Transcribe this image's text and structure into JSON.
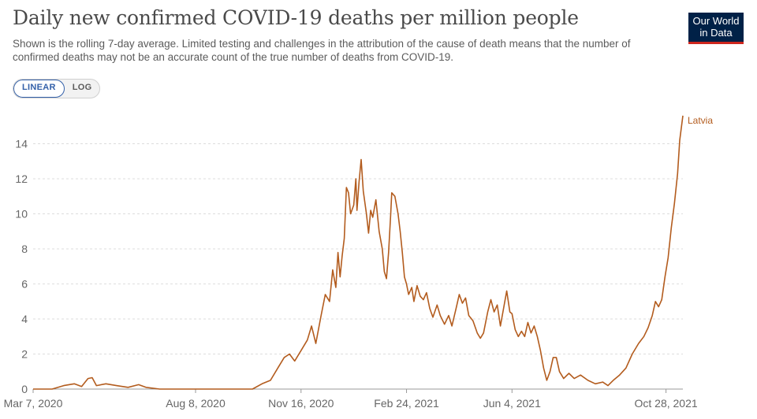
{
  "title": "Daily new confirmed COVID-19 deaths per million people",
  "subtitle": "Shown is the rolling 7-day average. Limited testing and challenges in the attribution of the cause of death means that the number of confirmed deaths may not be an accurate count of the true number of deaths from COVID-19.",
  "logo": {
    "line1": "Our World",
    "line2": "in Data",
    "bg": "#002147",
    "accent": "#ce261e"
  },
  "controls": {
    "linear_label": "LINEAR",
    "log_label": "LOG",
    "selected": "linear"
  },
  "chart_data": {
    "type": "line",
    "title": "Daily new confirmed COVID-19 deaths per million people",
    "xlabel": "",
    "ylabel": "",
    "ylim": [
      0,
      16
    ],
    "yticks": [
      0,
      2,
      4,
      6,
      8,
      10,
      12,
      14
    ],
    "xlim": [
      "2020-03-07",
      "2021-11-13"
    ],
    "xticks": [
      {
        "date": "2020-03-07",
        "label": "Mar 7, 2020"
      },
      {
        "date": "2020-08-08",
        "label": "Aug 8, 2020"
      },
      {
        "date": "2020-11-16",
        "label": "Nov 16, 2020"
      },
      {
        "date": "2021-02-24",
        "label": "Feb 24, 2021"
      },
      {
        "date": "2021-06-04",
        "label": "Jun 4, 2021"
      },
      {
        "date": "2021-10-28",
        "label": "Oct 28, 2021"
      }
    ],
    "grid": true,
    "series": [
      {
        "name": "Latvia",
        "color": "#b35c1e",
        "points": [
          [
            "2020-03-07",
            0
          ],
          [
            "2020-03-25",
            0
          ],
          [
            "2020-04-05",
            0.2
          ],
          [
            "2020-04-15",
            0.3
          ],
          [
            "2020-04-22",
            0.15
          ],
          [
            "2020-04-28",
            0.6
          ],
          [
            "2020-05-02",
            0.65
          ],
          [
            "2020-05-06",
            0.2
          ],
          [
            "2020-05-15",
            0.3
          ],
          [
            "2020-05-25",
            0.2
          ],
          [
            "2020-06-05",
            0.1
          ],
          [
            "2020-06-15",
            0.25
          ],
          [
            "2020-06-22",
            0.1
          ],
          [
            "2020-07-05",
            0
          ],
          [
            "2020-08-08",
            0
          ],
          [
            "2020-09-10",
            0
          ],
          [
            "2020-10-01",
            0
          ],
          [
            "2020-10-10",
            0.3
          ],
          [
            "2020-10-18",
            0.5
          ],
          [
            "2020-10-25",
            1.2
          ],
          [
            "2020-10-31",
            1.8
          ],
          [
            "2020-11-05",
            2.0
          ],
          [
            "2020-11-10",
            1.6
          ],
          [
            "2020-11-16",
            2.2
          ],
          [
            "2020-11-22",
            2.8
          ],
          [
            "2020-11-26",
            3.6
          ],
          [
            "2020-11-30",
            2.6
          ],
          [
            "2020-12-05",
            4.2
          ],
          [
            "2020-12-09",
            5.4
          ],
          [
            "2020-12-13",
            5.0
          ],
          [
            "2020-12-16",
            6.8
          ],
          [
            "2020-12-19",
            5.8
          ],
          [
            "2020-12-21",
            7.8
          ],
          [
            "2020-12-23",
            6.4
          ],
          [
            "2020-12-25",
            7.6
          ],
          [
            "2020-12-27",
            8.6
          ],
          [
            "2020-12-29",
            11.5
          ],
          [
            "2020-12-31",
            11.2
          ],
          [
            "2021-01-02",
            10.0
          ],
          [
            "2021-01-05",
            10.5
          ],
          [
            "2021-01-07",
            12.0
          ],
          [
            "2021-01-08",
            10.2
          ],
          [
            "2021-01-10",
            11.8
          ],
          [
            "2021-01-12",
            13.1
          ],
          [
            "2021-01-14",
            11.3
          ],
          [
            "2021-01-17",
            10.0
          ],
          [
            "2021-01-19",
            8.9
          ],
          [
            "2021-01-21",
            10.2
          ],
          [
            "2021-01-23",
            9.8
          ],
          [
            "2021-01-26",
            10.8
          ],
          [
            "2021-01-29",
            9.0
          ],
          [
            "2021-02-01",
            8.0
          ],
          [
            "2021-02-03",
            6.7
          ],
          [
            "2021-02-05",
            6.3
          ],
          [
            "2021-02-07",
            7.8
          ],
          [
            "2021-02-09",
            10.0
          ],
          [
            "2021-02-10",
            11.2
          ],
          [
            "2021-02-13",
            11.0
          ],
          [
            "2021-02-16",
            10.0
          ],
          [
            "2021-02-18",
            9.0
          ],
          [
            "2021-02-20",
            7.8
          ],
          [
            "2021-02-22",
            6.4
          ],
          [
            "2021-02-24",
            6.0
          ],
          [
            "2021-02-26",
            5.4
          ],
          [
            "2021-03-01",
            5.8
          ],
          [
            "2021-03-03",
            5.0
          ],
          [
            "2021-03-06",
            5.9
          ],
          [
            "2021-03-09",
            5.3
          ],
          [
            "2021-03-12",
            5.1
          ],
          [
            "2021-03-15",
            5.5
          ],
          [
            "2021-03-18",
            4.6
          ],
          [
            "2021-03-21",
            4.1
          ],
          [
            "2021-03-25",
            4.8
          ],
          [
            "2021-03-28",
            4.2
          ],
          [
            "2021-04-01",
            3.7
          ],
          [
            "2021-04-05",
            4.2
          ],
          [
            "2021-04-08",
            3.6
          ],
          [
            "2021-04-12",
            4.6
          ],
          [
            "2021-04-15",
            5.4
          ],
          [
            "2021-04-18",
            4.9
          ],
          [
            "2021-04-21",
            5.2
          ],
          [
            "2021-04-24",
            4.2
          ],
          [
            "2021-04-28",
            3.9
          ],
          [
            "2021-05-02",
            3.2
          ],
          [
            "2021-05-05",
            2.9
          ],
          [
            "2021-05-08",
            3.2
          ],
          [
            "2021-05-12",
            4.4
          ],
          [
            "2021-05-15",
            5.1
          ],
          [
            "2021-05-18",
            4.4
          ],
          [
            "2021-05-21",
            4.8
          ],
          [
            "2021-05-24",
            3.6
          ],
          [
            "2021-05-27",
            4.6
          ],
          [
            "2021-05-30",
            5.6
          ],
          [
            "2021-06-02",
            4.4
          ],
          [
            "2021-06-04",
            4.3
          ],
          [
            "2021-06-07",
            3.4
          ],
          [
            "2021-06-10",
            3.0
          ],
          [
            "2021-06-13",
            3.3
          ],
          [
            "2021-06-16",
            3.0
          ],
          [
            "2021-06-19",
            3.8
          ],
          [
            "2021-06-22",
            3.2
          ],
          [
            "2021-06-25",
            3.6
          ],
          [
            "2021-06-28",
            3.0
          ],
          [
            "2021-07-01",
            2.2
          ],
          [
            "2021-07-04",
            1.2
          ],
          [
            "2021-07-07",
            0.5
          ],
          [
            "2021-07-10",
            1.0
          ],
          [
            "2021-07-13",
            1.8
          ],
          [
            "2021-07-16",
            1.8
          ],
          [
            "2021-07-19",
            1.0
          ],
          [
            "2021-07-23",
            0.6
          ],
          [
            "2021-07-28",
            0.9
          ],
          [
            "2021-08-02",
            0.6
          ],
          [
            "2021-08-08",
            0.8
          ],
          [
            "2021-08-15",
            0.5
          ],
          [
            "2021-08-22",
            0.3
          ],
          [
            "2021-08-29",
            0.4
          ],
          [
            "2021-09-03",
            0.2
          ],
          [
            "2021-09-08",
            0.5
          ],
          [
            "2021-09-14",
            0.8
          ],
          [
            "2021-09-20",
            1.2
          ],
          [
            "2021-09-26",
            2.0
          ],
          [
            "2021-10-02",
            2.6
          ],
          [
            "2021-10-07",
            3.0
          ],
          [
            "2021-10-11",
            3.5
          ],
          [
            "2021-10-15",
            4.2
          ],
          [
            "2021-10-18",
            5.0
          ],
          [
            "2021-10-21",
            4.7
          ],
          [
            "2021-10-24",
            5.1
          ],
          [
            "2021-10-27",
            6.4
          ],
          [
            "2021-10-30",
            7.5
          ],
          [
            "2021-11-02",
            9.2
          ],
          [
            "2021-11-05",
            10.6
          ],
          [
            "2021-11-08",
            12.3
          ],
          [
            "2021-11-10",
            14.2
          ],
          [
            "2021-11-13",
            15.6
          ]
        ]
      }
    ]
  }
}
